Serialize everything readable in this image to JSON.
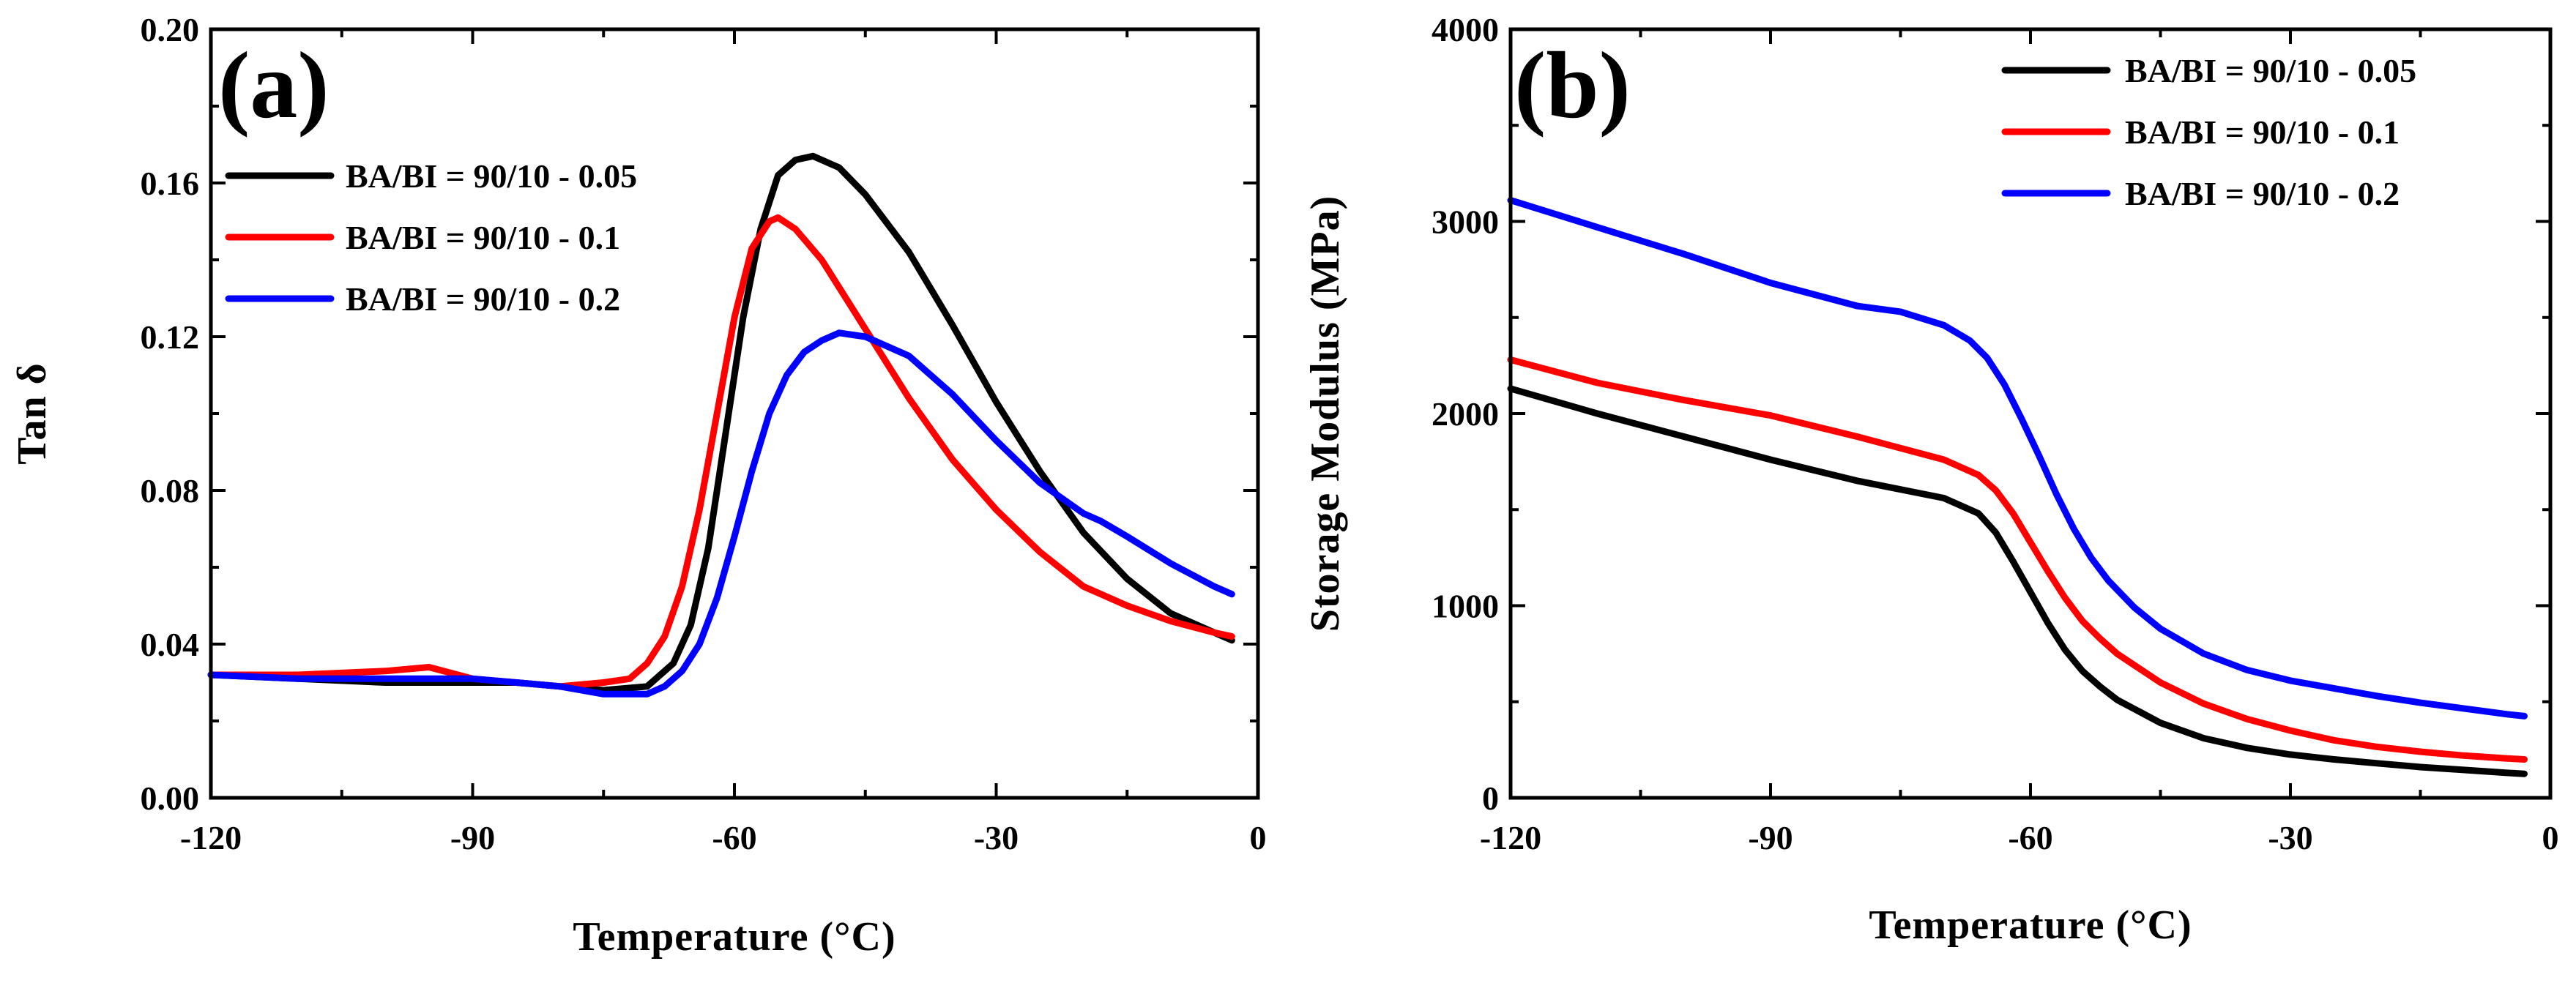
{
  "chart_data": [
    {
      "type": "line",
      "panel_label": "(a)",
      "xlabel": "Temperature (°C)",
      "ylabel": "Tan δ",
      "xlim": [
        -120,
        0
      ],
      "ylim": [
        0,
        0.2
      ],
      "xticks": [
        -120,
        -90,
        -60,
        -30,
        0
      ],
      "xtick_labels": [
        "-120",
        "-90",
        "-60",
        "-30",
        "0"
      ],
      "yticks": [
        0,
        0.04,
        0.08,
        0.12,
        0.16,
        0.2
      ],
      "ytick_labels": [
        "0.00",
        "0.04",
        "0.08",
        "0.12",
        "0.16",
        "0.20"
      ],
      "legend": "top-center",
      "series": [
        {
          "name": "BA/BI = 90/10 - 0.05",
          "color": "#000000",
          "x": [
            -120,
            -110,
            -100,
            -90,
            -85,
            -80,
            -75,
            -70,
            -67,
            -65,
            -63,
            -61,
            -59,
            -57,
            -55,
            -53,
            -51,
            -48,
            -45,
            -40,
            -35,
            -30,
            -25,
            -20,
            -15,
            -10,
            -5,
            -3
          ],
          "y": [
            0.032,
            0.031,
            0.03,
            0.03,
            0.03,
            0.029,
            0.028,
            0.029,
            0.035,
            0.045,
            0.065,
            0.095,
            0.125,
            0.148,
            0.162,
            0.166,
            0.167,
            0.164,
            0.157,
            0.142,
            0.123,
            0.103,
            0.085,
            0.069,
            0.057,
            0.048,
            0.043,
            0.041
          ]
        },
        {
          "name": "BA/BI = 90/10 - 0.1",
          "color": "#ff0000",
          "x": [
            -120,
            -110,
            -100,
            -95,
            -90,
            -85,
            -80,
            -75,
            -72,
            -70,
            -68,
            -66,
            -64,
            -62,
            -60,
            -58,
            -56,
            -55,
            -53,
            -50,
            -45,
            -40,
            -35,
            -30,
            -25,
            -20,
            -15,
            -10,
            -5,
            -3
          ],
          "y": [
            0.032,
            0.032,
            0.033,
            0.034,
            0.031,
            0.03,
            0.029,
            0.03,
            0.031,
            0.035,
            0.042,
            0.055,
            0.075,
            0.1,
            0.125,
            0.143,
            0.15,
            0.151,
            0.148,
            0.14,
            0.122,
            0.104,
            0.088,
            0.075,
            0.064,
            0.055,
            0.05,
            0.046,
            0.043,
            0.042
          ]
        },
        {
          "name": "BA/BI = 90/10 - 0.2",
          "color": "#0000ff",
          "x": [
            -120,
            -110,
            -100,
            -90,
            -85,
            -80,
            -75,
            -70,
            -68,
            -66,
            -64,
            -62,
            -60,
            -58,
            -56,
            -54,
            -52,
            -50,
            -48,
            -45,
            -40,
            -35,
            -30,
            -25,
            -20,
            -18,
            -15,
            -10,
            -5,
            -3
          ],
          "y": [
            0.032,
            0.031,
            0.031,
            0.031,
            0.03,
            0.029,
            0.027,
            0.027,
            0.029,
            0.033,
            0.04,
            0.052,
            0.068,
            0.085,
            0.1,
            0.11,
            0.116,
            0.119,
            0.121,
            0.12,
            0.115,
            0.105,
            0.093,
            0.082,
            0.074,
            0.072,
            0.068,
            0.061,
            0.055,
            0.053
          ]
        }
      ]
    },
    {
      "type": "line",
      "panel_label": "(b)",
      "xlabel": "Temperature (°C)",
      "ylabel": "Storage Modulus (MPa)",
      "xlim": [
        -120,
        0
      ],
      "ylim": [
        0,
        4000
      ],
      "xticks": [
        -120,
        -90,
        -60,
        -30,
        0
      ],
      "xtick_labels": [
        "-120",
        "-90",
        "-60",
        "-30",
        "0"
      ],
      "yticks": [
        0,
        1000,
        2000,
        3000,
        4000
      ],
      "ytick_labels": [
        "0",
        "1000",
        "2000",
        "3000",
        "4000"
      ],
      "legend": "top-right",
      "series": [
        {
          "name": "BA/BI = 90/10 - 0.05",
          "color": "#000000",
          "x": [
            -120,
            -110,
            -100,
            -90,
            -80,
            -70,
            -66,
            -64,
            -62,
            -60,
            -58,
            -56,
            -54,
            -52,
            -50,
            -45,
            -40,
            -35,
            -30,
            -25,
            -20,
            -15,
            -10,
            -5,
            -3
          ],
          "y": [
            2130,
            2000,
            1880,
            1760,
            1650,
            1560,
            1480,
            1380,
            1230,
            1070,
            910,
            770,
            660,
            580,
            510,
            390,
            310,
            260,
            225,
            200,
            180,
            160,
            145,
            130,
            125
          ]
        },
        {
          "name": "BA/BI = 90/10 - 0.1",
          "color": "#ff0000",
          "x": [
            -120,
            -110,
            -100,
            -90,
            -80,
            -70,
            -66,
            -64,
            -62,
            -60,
            -58,
            -56,
            -54,
            -52,
            -50,
            -45,
            -40,
            -35,
            -30,
            -25,
            -20,
            -15,
            -10,
            -5,
            -3
          ],
          "y": [
            2280,
            2160,
            2070,
            1990,
            1880,
            1760,
            1680,
            1600,
            1480,
            1330,
            1180,
            1040,
            920,
            830,
            750,
            600,
            490,
            410,
            350,
            300,
            265,
            240,
            220,
            205,
            200
          ]
        },
        {
          "name": "BA/BI = 90/10 - 0.2",
          "color": "#0000ff",
          "x": [
            -120,
            -110,
            -100,
            -90,
            -80,
            -75,
            -70,
            -67,
            -65,
            -63,
            -61,
            -59,
            -57,
            -55,
            -53,
            -51,
            -48,
            -45,
            -40,
            -35,
            -30,
            -25,
            -20,
            -15,
            -10,
            -5,
            -3
          ],
          "y": [
            3110,
            2970,
            2830,
            2680,
            2560,
            2530,
            2460,
            2380,
            2290,
            2150,
            1970,
            1780,
            1580,
            1400,
            1250,
            1130,
            990,
            880,
            750,
            665,
            610,
            570,
            530,
            495,
            465,
            435,
            425
          ]
        }
      ]
    }
  ]
}
